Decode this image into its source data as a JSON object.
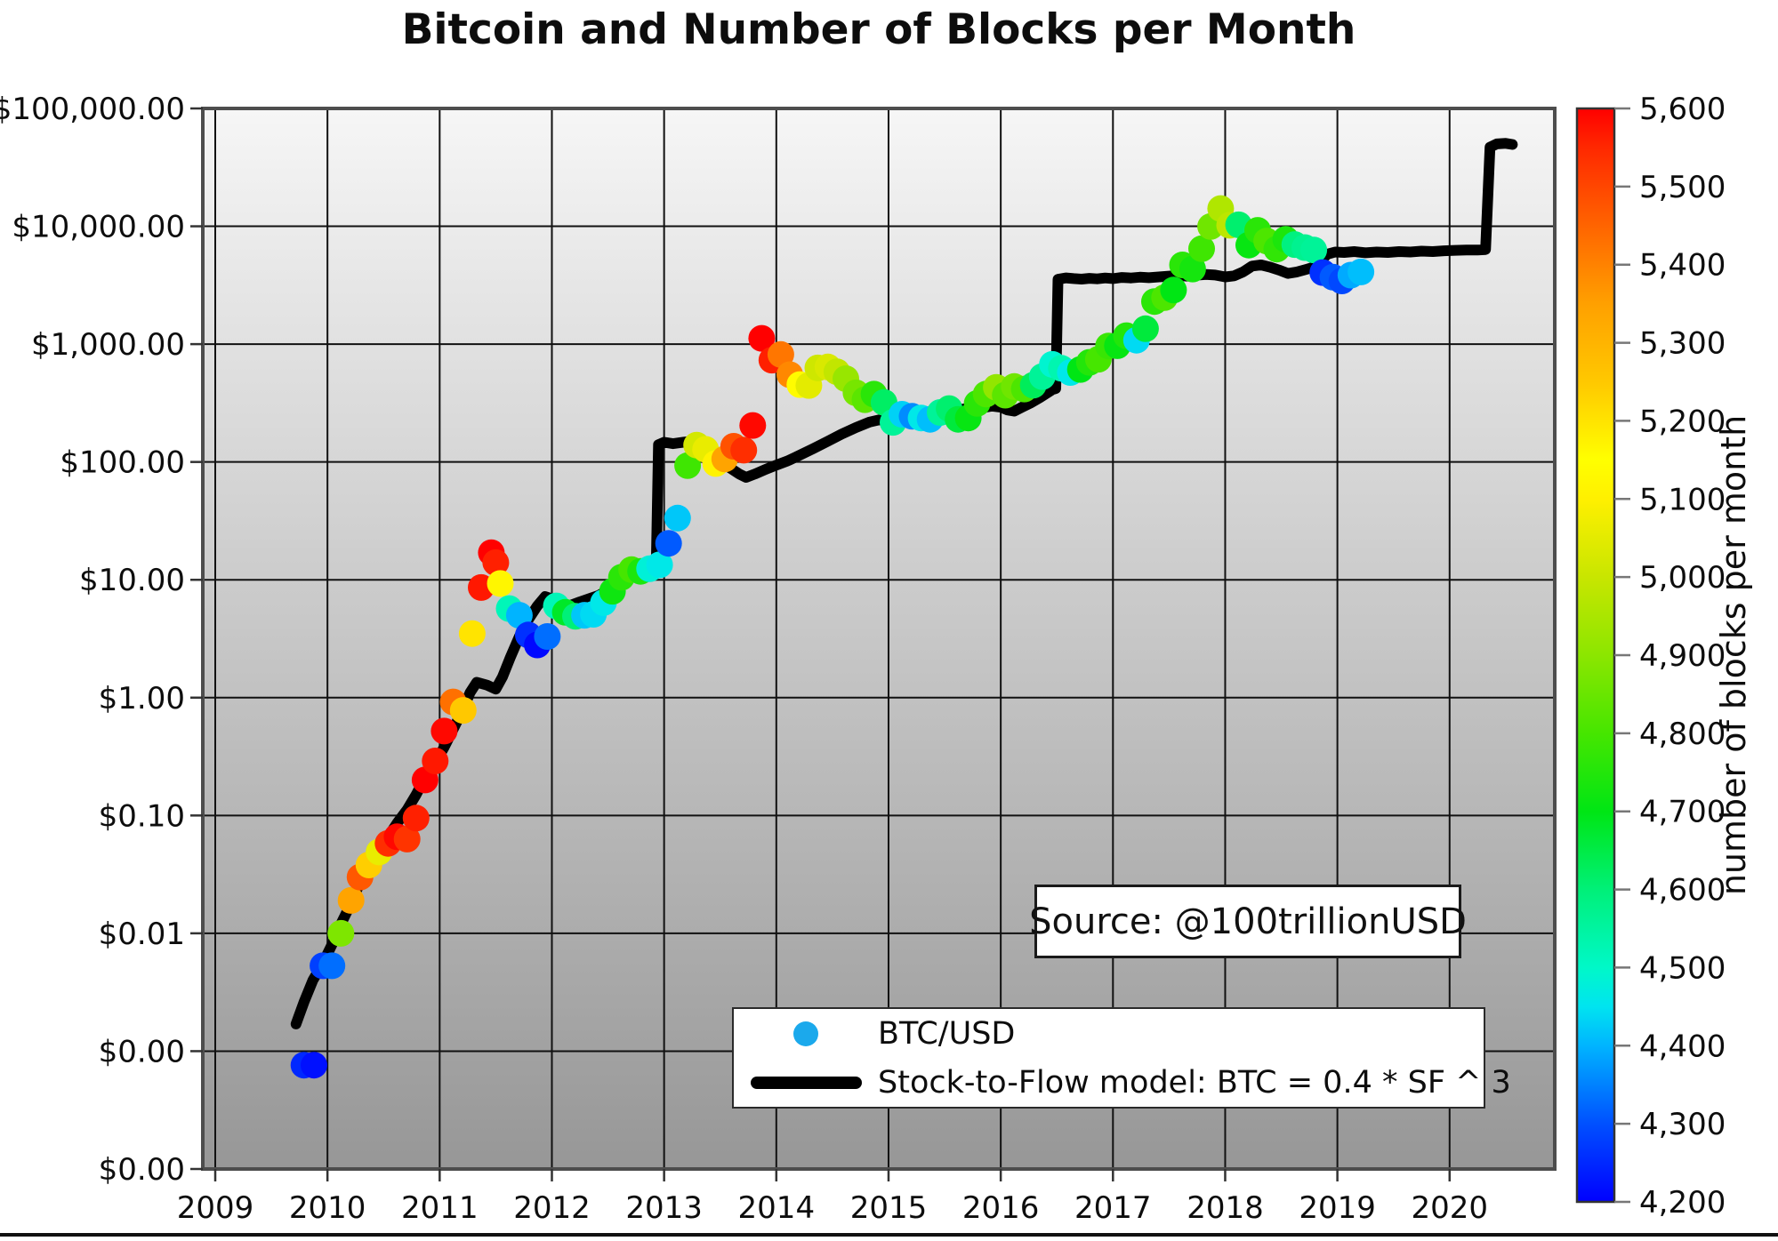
{
  "title": "Bitcoin and Number of Blocks per Month",
  "source_label": "Source: @100trillionUSD",
  "legend": {
    "scatter_label": "BTC/USD",
    "line_label": "Stock-to-Flow model: BTC = 0.4 * SF ^ 3",
    "marker_color": "#1ba9ec",
    "line_color": "#000000"
  },
  "colorbar": {
    "label": "number of blocks per month",
    "min": 4200,
    "max": 5600,
    "tick_labels": [
      "5,600",
      "5,500",
      "5,400",
      "5,300",
      "5,200",
      "5,100",
      "5,000",
      "4,900",
      "4,800",
      "4,700",
      "4,600",
      "4,500",
      "4,400",
      "4,300",
      "4,200"
    ],
    "tick_values": [
      5600,
      5500,
      5400,
      5300,
      5200,
      5100,
      5000,
      4900,
      4800,
      4700,
      4600,
      4500,
      4400,
      4300,
      4200
    ],
    "color_stops": [
      [
        4200,
        "#0000ff"
      ],
      [
        4300,
        "#0050ff"
      ],
      [
        4400,
        "#00b4ff"
      ],
      [
        4450,
        "#00e4f0"
      ],
      [
        4500,
        "#00f8c8"
      ],
      [
        4600,
        "#00f078"
      ],
      [
        4700,
        "#00e614"
      ],
      [
        4800,
        "#46e600"
      ],
      [
        4900,
        "#8ce600"
      ],
      [
        5000,
        "#c8e600"
      ],
      [
        5100,
        "#fff000"
      ],
      [
        5150,
        "#ffff00"
      ],
      [
        5250,
        "#ffc800"
      ],
      [
        5350,
        "#ffa000"
      ],
      [
        5450,
        "#ff6400"
      ],
      [
        5550,
        "#ff2800"
      ],
      [
        5600,
        "#ff0000"
      ]
    ]
  },
  "axes": {
    "x_tick_labels": [
      "2009",
      "2010",
      "2011",
      "2012",
      "2013",
      "2014",
      "2015",
      "2016",
      "2017",
      "2018",
      "2019",
      "2020"
    ],
    "x_tick_values": [
      2009,
      2010,
      2011,
      2012,
      2013,
      2014,
      2015,
      2016,
      2017,
      2018,
      2019,
      2020
    ],
    "x_range": [
      2008.889,
      2020.937
    ],
    "y_tick_labels": [
      "$100,000.00",
      "$10,000.00",
      "$1,000.00",
      "$100.00",
      "$10.00",
      "$1.00",
      "$0.10",
      "$0.01",
      "$0.00",
      "$0.00"
    ],
    "y_tick_values": [
      100000,
      10000,
      1000,
      100,
      10,
      1,
      0.1,
      0.01,
      0.001,
      0.0001
    ],
    "y_scale": "log",
    "y_range": [
      0.0001,
      100000
    ],
    "grid": "on",
    "background": "vertical gradient white to gray"
  },
  "chart_data": {
    "type": "scatter",
    "title": "Bitcoin and Number of Blocks per Month",
    "xlabel": "",
    "ylabel": "",
    "color_dimension": "number of blocks per month",
    "scatter_series": {
      "name": "BTC/USD",
      "note": "each point = [decimal_year, price_usd, blocks_per_month]",
      "points": [
        [
          2009.79,
          0.00076,
          4250
        ],
        [
          2009.88,
          0.00076,
          4220
        ],
        [
          2009.96,
          0.0053,
          4280
        ],
        [
          2010.04,
          0.0053,
          4330
        ],
        [
          2010.12,
          0.01,
          4880
        ],
        [
          2010.21,
          0.019,
          5340
        ],
        [
          2010.29,
          0.03,
          5470
        ],
        [
          2010.37,
          0.038,
          5240
        ],
        [
          2010.46,
          0.049,
          5060
        ],
        [
          2010.54,
          0.058,
          5540
        ],
        [
          2010.62,
          0.066,
          5590
        ],
        [
          2010.71,
          0.063,
          5530
        ],
        [
          2010.79,
          0.095,
          5560
        ],
        [
          2010.87,
          0.2,
          5600
        ],
        [
          2010.96,
          0.29,
          5570
        ],
        [
          2011.04,
          0.52,
          5590
        ],
        [
          2011.12,
          0.92,
          5430
        ],
        [
          2011.21,
          0.78,
          5250
        ],
        [
          2011.29,
          3.5,
          5200
        ],
        [
          2011.37,
          8.6,
          5570
        ],
        [
          2011.46,
          17.0,
          5600
        ],
        [
          2011.5,
          14.0,
          5560
        ],
        [
          2011.54,
          9.3,
          5120
        ],
        [
          2011.62,
          5.7,
          4520
        ],
        [
          2011.71,
          5.0,
          4400
        ],
        [
          2011.79,
          3.4,
          4260
        ],
        [
          2011.87,
          2.8,
          4210
        ],
        [
          2011.96,
          3.3,
          4330
        ],
        [
          2012.04,
          6.0,
          4520
        ],
        [
          2012.12,
          5.3,
          4680
        ],
        [
          2012.21,
          4.9,
          4600
        ],
        [
          2012.29,
          5.0,
          4420
        ],
        [
          2012.37,
          5.1,
          4440
        ],
        [
          2012.46,
          6.4,
          4460
        ],
        [
          2012.54,
          8.0,
          4720
        ],
        [
          2012.62,
          10.5,
          4760
        ],
        [
          2012.71,
          12.2,
          4800
        ],
        [
          2012.79,
          11.8,
          4740
        ],
        [
          2012.87,
          12.4,
          4480
        ],
        [
          2012.96,
          13.4,
          4460
        ],
        [
          2013.04,
          20.4,
          4310
        ],
        [
          2013.12,
          33.4,
          4420
        ],
        [
          2013.21,
          93,
          4790
        ],
        [
          2013.29,
          139,
          5020
        ],
        [
          2013.37,
          128,
          5060
        ],
        [
          2013.46,
          97,
          5110
        ],
        [
          2013.54,
          106,
          5340
        ],
        [
          2013.62,
          136,
          5480
        ],
        [
          2013.71,
          126,
          5540
        ],
        [
          2013.79,
          204,
          5590
        ],
        [
          2013.87,
          1120,
          5600
        ],
        [
          2013.96,
          732,
          5560
        ],
        [
          2014.04,
          816,
          5420
        ],
        [
          2014.12,
          550,
          5390
        ],
        [
          2014.21,
          454,
          5140
        ],
        [
          2014.29,
          446,
          5050
        ],
        [
          2014.37,
          628,
          5010
        ],
        [
          2014.46,
          640,
          5030
        ],
        [
          2014.54,
          583,
          4990
        ],
        [
          2014.62,
          509,
          4920
        ],
        [
          2014.71,
          386,
          4870
        ],
        [
          2014.79,
          338,
          4830
        ],
        [
          2014.87,
          376,
          4760
        ],
        [
          2014.96,
          320,
          4620
        ],
        [
          2015.04,
          217,
          4560
        ],
        [
          2015.12,
          254,
          4430
        ],
        [
          2015.21,
          244,
          4360
        ],
        [
          2015.29,
          236,
          4460
        ],
        [
          2015.37,
          230,
          4410
        ],
        [
          2015.46,
          263,
          4560
        ],
        [
          2015.54,
          284,
          4610
        ],
        [
          2015.62,
          230,
          4660
        ],
        [
          2015.71,
          236,
          4710
        ],
        [
          2015.79,
          314,
          4760
        ],
        [
          2015.87,
          377,
          4810
        ],
        [
          2015.96,
          430,
          4910
        ],
        [
          2016.04,
          369,
          4830
        ],
        [
          2016.12,
          437,
          4860
        ],
        [
          2016.21,
          416,
          4810
        ],
        [
          2016.29,
          448,
          4630
        ],
        [
          2016.37,
          531,
          4560
        ],
        [
          2016.46,
          673,
          4490
        ],
        [
          2016.54,
          624,
          4530
        ],
        [
          2016.62,
          575,
          4460
        ],
        [
          2016.71,
          610,
          4700
        ],
        [
          2016.79,
          700,
          4750
        ],
        [
          2016.87,
          745,
          4800
        ],
        [
          2016.96,
          964,
          4780
        ],
        [
          2017.04,
          970,
          4710
        ],
        [
          2017.12,
          1180,
          4750
        ],
        [
          2017.21,
          1080,
          4440
        ],
        [
          2017.29,
          1350,
          4660
        ],
        [
          2017.37,
          2300,
          4760
        ],
        [
          2017.46,
          2480,
          4810
        ],
        [
          2017.54,
          2875,
          4700
        ],
        [
          2017.62,
          4700,
          4760
        ],
        [
          2017.71,
          4340,
          4730
        ],
        [
          2017.79,
          6450,
          4790
        ],
        [
          2017.87,
          9950,
          4860
        ],
        [
          2017.96,
          14150,
          4960
        ],
        [
          2018.04,
          10200,
          4980
        ],
        [
          2018.12,
          10300,
          4610
        ],
        [
          2018.21,
          6930,
          4710
        ],
        [
          2018.29,
          9240,
          4760
        ],
        [
          2018.37,
          7500,
          4810
        ],
        [
          2018.46,
          6400,
          4770
        ],
        [
          2018.54,
          7750,
          4740
        ],
        [
          2018.62,
          7000,
          4590
        ],
        [
          2018.71,
          6600,
          4570
        ],
        [
          2018.79,
          6300,
          4560
        ],
        [
          2018.87,
          4050,
          4260
        ],
        [
          2018.96,
          3700,
          4310
        ],
        [
          2019.04,
          3440,
          4290
        ],
        [
          2019.12,
          3850,
          4390
        ],
        [
          2019.21,
          4100,
          4410
        ]
      ]
    },
    "line_series": {
      "name": "Stock-to-Flow model: BTC = 0.4 * SF ^ 3",
      "note": "each point = [decimal_year, model_price_usd]",
      "points": [
        [
          2009.72,
          0.0017
        ],
        [
          2009.79,
          0.0026
        ],
        [
          2009.87,
          0.004
        ],
        [
          2009.96,
          0.0056
        ],
        [
          2010.04,
          0.008
        ],
        [
          2010.12,
          0.012
        ],
        [
          2010.21,
          0.018
        ],
        [
          2010.29,
          0.027
        ],
        [
          2010.37,
          0.038
        ],
        [
          2010.46,
          0.051
        ],
        [
          2010.54,
          0.066
        ],
        [
          2010.62,
          0.086
        ],
        [
          2010.71,
          0.112
        ],
        [
          2010.79,
          0.15
        ],
        [
          2010.87,
          0.21
        ],
        [
          2010.96,
          0.28
        ],
        [
          2011.04,
          0.38
        ],
        [
          2011.12,
          0.54
        ],
        [
          2011.21,
          0.8
        ],
        [
          2011.27,
          1.1
        ],
        [
          2011.33,
          1.35
        ],
        [
          2011.42,
          1.28
        ],
        [
          2011.5,
          1.18
        ],
        [
          2011.56,
          1.5
        ],
        [
          2011.63,
          2.2
        ],
        [
          2011.71,
          3.3
        ],
        [
          2011.79,
          4.6
        ],
        [
          2011.87,
          6.0
        ],
        [
          2011.94,
          7.2
        ],
        [
          2012.0,
          6.9
        ],
        [
          2012.08,
          6.0
        ],
        [
          2012.17,
          6.1
        ],
        [
          2012.25,
          6.5
        ],
        [
          2012.33,
          6.9
        ],
        [
          2012.42,
          7.4
        ],
        [
          2012.5,
          8.2
        ],
        [
          2012.58,
          9.2
        ],
        [
          2012.67,
          10.2
        ],
        [
          2012.75,
          11.0
        ],
        [
          2012.83,
          11.8
        ],
        [
          2012.91,
          12.8
        ],
        [
          2012.93,
          13.2
        ],
        [
          2012.95,
          140
        ],
        [
          2013.0,
          147
        ],
        [
          2013.08,
          143
        ],
        [
          2013.17,
          147
        ],
        [
          2013.25,
          150
        ],
        [
          2013.33,
          141
        ],
        [
          2013.42,
          126
        ],
        [
          2013.5,
          106
        ],
        [
          2013.58,
          90
        ],
        [
          2013.67,
          79
        ],
        [
          2013.73,
          74
        ],
        [
          2013.81,
          79
        ],
        [
          2013.9,
          86
        ],
        [
          2014.0,
          94
        ],
        [
          2014.1,
          102
        ],
        [
          2014.2,
          113
        ],
        [
          2014.33,
          130
        ],
        [
          2014.46,
          150
        ],
        [
          2014.58,
          172
        ],
        [
          2014.71,
          196
        ],
        [
          2014.83,
          218
        ],
        [
          2014.92,
          228
        ],
        [
          2015.0,
          222
        ],
        [
          2015.08,
          232
        ],
        [
          2015.17,
          242
        ],
        [
          2015.25,
          238
        ],
        [
          2015.33,
          252
        ],
        [
          2015.42,
          262
        ],
        [
          2015.5,
          258
        ],
        [
          2015.58,
          272
        ],
        [
          2015.67,
          282
        ],
        [
          2015.75,
          292
        ],
        [
          2015.83,
          288
        ],
        [
          2015.92,
          298
        ],
        [
          2016.0,
          292
        ],
        [
          2016.06,
          276
        ],
        [
          2016.12,
          270
        ],
        [
          2016.19,
          292
        ],
        [
          2016.27,
          318
        ],
        [
          2016.35,
          352
        ],
        [
          2016.42,
          388
        ],
        [
          2016.46,
          412
        ],
        [
          2016.49,
          420
        ],
        [
          2016.51,
          3550
        ],
        [
          2016.58,
          3650
        ],
        [
          2016.65,
          3600
        ],
        [
          2016.72,
          3560
        ],
        [
          2016.79,
          3620
        ],
        [
          2016.86,
          3580
        ],
        [
          2016.93,
          3640
        ],
        [
          2017.0,
          3600
        ],
        [
          2017.08,
          3680
        ],
        [
          2017.16,
          3640
        ],
        [
          2017.24,
          3700
        ],
        [
          2017.32,
          3660
        ],
        [
          2017.41,
          3720
        ],
        [
          2017.5,
          3780
        ],
        [
          2017.58,
          3820
        ],
        [
          2017.66,
          3780
        ],
        [
          2017.75,
          3850
        ],
        [
          2017.83,
          3900
        ],
        [
          2017.91,
          3860
        ],
        [
          2018.0,
          3720
        ],
        [
          2018.08,
          3800
        ],
        [
          2018.16,
          4100
        ],
        [
          2018.24,
          4600
        ],
        [
          2018.32,
          4700
        ],
        [
          2018.4,
          4500
        ],
        [
          2018.48,
          4250
        ],
        [
          2018.56,
          3980
        ],
        [
          2018.64,
          4100
        ],
        [
          2018.72,
          4300
        ],
        [
          2018.79,
          4500
        ],
        [
          2018.85,
          5100
        ],
        [
          2018.91,
          5800
        ],
        [
          2018.98,
          6050
        ],
        [
          2019.06,
          6000
        ],
        [
          2019.15,
          6100
        ],
        [
          2019.25,
          5950
        ],
        [
          2019.35,
          6050
        ],
        [
          2019.45,
          6000
        ],
        [
          2019.55,
          6100
        ],
        [
          2019.65,
          6050
        ],
        [
          2019.75,
          6150
        ],
        [
          2019.85,
          6100
        ],
        [
          2019.95,
          6200
        ],
        [
          2020.05,
          6250
        ],
        [
          2020.15,
          6300
        ],
        [
          2020.25,
          6300
        ],
        [
          2020.32,
          6350
        ],
        [
          2020.36,
          47000
        ],
        [
          2020.42,
          50000
        ],
        [
          2020.5,
          50500
        ],
        [
          2020.56,
          49500
        ]
      ]
    }
  }
}
